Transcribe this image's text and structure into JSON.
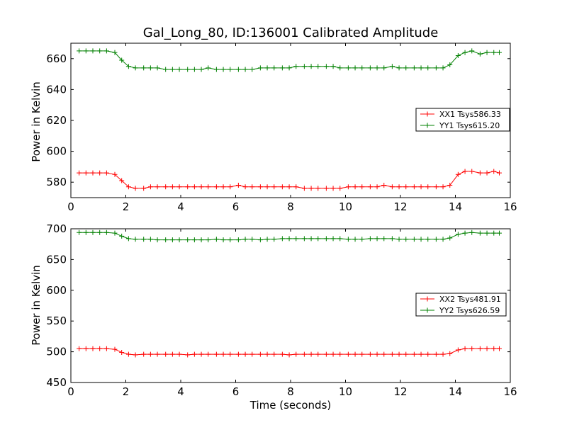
{
  "chart_data": [
    {
      "type": "line",
      "title": "Gal_Long_80, ID:136001 Calibrated Amplitude",
      "xlabel": "",
      "ylabel": "Power in Kelvin",
      "xlim": [
        0,
        16
      ],
      "ylim": [
        570,
        670
      ],
      "xticks": [
        0,
        2,
        4,
        6,
        8,
        10,
        12,
        14,
        16
      ],
      "yticks": [
        580,
        600,
        620,
        640,
        660
      ],
      "grid": false,
      "legend_position": "right",
      "x": [
        0.3,
        0.55,
        0.8,
        1.05,
        1.3,
        1.6,
        1.85,
        2.1,
        2.35,
        2.65,
        2.9,
        3.15,
        3.45,
        3.7,
        3.95,
        4.25,
        4.5,
        4.75,
        5.0,
        5.3,
        5.55,
        5.8,
        6.1,
        6.35,
        6.6,
        6.9,
        7.15,
        7.4,
        7.7,
        7.95,
        8.2,
        8.5,
        8.75,
        9.0,
        9.3,
        9.55,
        9.8,
        10.1,
        10.35,
        10.6,
        10.9,
        11.15,
        11.4,
        11.7,
        11.95,
        12.2,
        12.5,
        12.75,
        13.0,
        13.3,
        13.55,
        13.8,
        14.1,
        14.35,
        14.6,
        14.9,
        15.15,
        15.4,
        15.6
      ],
      "series": [
        {
          "name": "XX1 Tsys586.33",
          "color": "#ff0000",
          "values": [
            586,
            586,
            586,
            586,
            586,
            585,
            581,
            577,
            576,
            576,
            577,
            577,
            577,
            577,
            577,
            577,
            577,
            577,
            577,
            577,
            577,
            577,
            578,
            577,
            577,
            577,
            577,
            577,
            577,
            577,
            577,
            576,
            576,
            576,
            576,
            576,
            576,
            577,
            577,
            577,
            577,
            577,
            578,
            577,
            577,
            577,
            577,
            577,
            577,
            577,
            577,
            578,
            585,
            587,
            587,
            586,
            586,
            587,
            586
          ]
        },
        {
          "name": "YY1 Tsys615.20",
          "color": "#008000",
          "values": [
            665,
            665,
            665,
            665,
            665,
            664,
            659,
            655,
            654,
            654,
            654,
            654,
            653,
            653,
            653,
            653,
            653,
            653,
            654,
            653,
            653,
            653,
            653,
            653,
            653,
            654,
            654,
            654,
            654,
            654,
            655,
            655,
            655,
            655,
            655,
            655,
            654,
            654,
            654,
            654,
            654,
            654,
            654,
            655,
            654,
            654,
            654,
            654,
            654,
            654,
            654,
            656,
            662,
            664,
            665,
            663,
            664,
            664,
            664
          ]
        }
      ]
    },
    {
      "type": "line",
      "title": "",
      "xlabel": "Time (seconds)",
      "ylabel": "Power in Kelvin",
      "xlim": [
        0,
        16
      ],
      "ylim": [
        450,
        700
      ],
      "xticks": [
        0,
        2,
        4,
        6,
        8,
        10,
        12,
        14,
        16
      ],
      "yticks": [
        450,
        500,
        550,
        600,
        650,
        700
      ],
      "grid": false,
      "legend_position": "right",
      "x": [
        0.3,
        0.55,
        0.8,
        1.05,
        1.3,
        1.6,
        1.85,
        2.1,
        2.35,
        2.65,
        2.9,
        3.15,
        3.45,
        3.7,
        3.95,
        4.25,
        4.5,
        4.75,
        5.0,
        5.3,
        5.55,
        5.8,
        6.1,
        6.35,
        6.6,
        6.9,
        7.15,
        7.4,
        7.7,
        7.95,
        8.2,
        8.5,
        8.75,
        9.0,
        9.3,
        9.55,
        9.8,
        10.1,
        10.35,
        10.6,
        10.9,
        11.15,
        11.4,
        11.7,
        11.95,
        12.2,
        12.5,
        12.75,
        13.0,
        13.3,
        13.55,
        13.8,
        14.1,
        14.35,
        14.6,
        14.9,
        15.15,
        15.4,
        15.6
      ],
      "series": [
        {
          "name": "XX2 Tsys481.91",
          "color": "#ff0000",
          "values": [
            505,
            505,
            505,
            505,
            505,
            504,
            499,
            496,
            495,
            496,
            496,
            496,
            496,
            496,
            496,
            495,
            496,
            496,
            496,
            496,
            496,
            496,
            496,
            496,
            496,
            496,
            496,
            496,
            496,
            495,
            496,
            496,
            496,
            496,
            496,
            496,
            496,
            496,
            496,
            496,
            496,
            496,
            496,
            496,
            496,
            496,
            496,
            496,
            496,
            496,
            496,
            497,
            503,
            505,
            505,
            505,
            505,
            505,
            505
          ]
        },
        {
          "name": "YY2 Tsys626.59",
          "color": "#008000",
          "values": [
            694,
            694,
            694,
            694,
            694,
            693,
            688,
            684,
            683,
            683,
            683,
            682,
            682,
            682,
            682,
            682,
            682,
            682,
            682,
            683,
            682,
            682,
            682,
            683,
            683,
            682,
            683,
            683,
            684,
            684,
            684,
            684,
            684,
            684,
            684,
            684,
            684,
            683,
            683,
            683,
            684,
            684,
            684,
            684,
            683,
            683,
            683,
            683,
            683,
            683,
            683,
            685,
            691,
            693,
            694,
            693,
            693,
            693,
            693
          ]
        }
      ]
    }
  ]
}
